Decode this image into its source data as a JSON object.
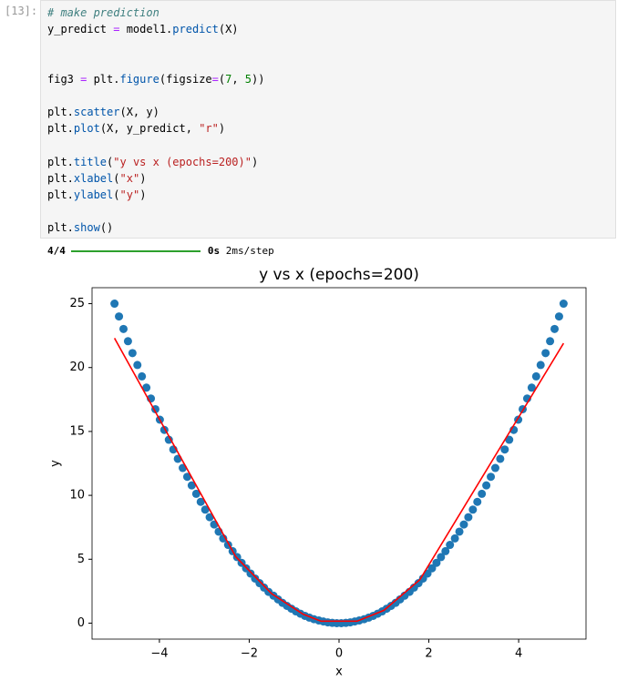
{
  "cell": {
    "prompt": "[13]:",
    "code": [
      [
        {
          "text": "# make prediction",
          "color": "#408080",
          "italic": true
        }
      ],
      [
        {
          "text": "y_predict ",
          "color": "#000000"
        },
        {
          "text": "=",
          "color": "#aa22ff"
        },
        {
          "text": " model1.",
          "color": "#000000"
        },
        {
          "text": "predict",
          "color": "#0055aa"
        },
        {
          "text": "(X)",
          "color": "#000000"
        }
      ],
      [],
      [],
      [
        {
          "text": "fig3 ",
          "color": "#000000"
        },
        {
          "text": "=",
          "color": "#aa22ff"
        },
        {
          "text": " plt.",
          "color": "#000000"
        },
        {
          "text": "figure",
          "color": "#0055aa"
        },
        {
          "text": "(figsize",
          "color": "#000000"
        },
        {
          "text": "=",
          "color": "#aa22ff"
        },
        {
          "text": "(",
          "color": "#000000"
        },
        {
          "text": "7",
          "color": "#008000"
        },
        {
          "text": ", ",
          "color": "#000000"
        },
        {
          "text": "5",
          "color": "#008000"
        },
        {
          "text": "))",
          "color": "#000000"
        }
      ],
      [],
      [
        {
          "text": "plt.",
          "color": "#000000"
        },
        {
          "text": "scatter",
          "color": "#0055aa"
        },
        {
          "text": "(X, y)",
          "color": "#000000"
        }
      ],
      [
        {
          "text": "plt.",
          "color": "#000000"
        },
        {
          "text": "plot",
          "color": "#0055aa"
        },
        {
          "text": "(X, y_predict, ",
          "color": "#000000"
        },
        {
          "text": "\"r\"",
          "color": "#ba2121"
        },
        {
          "text": ")",
          "color": "#000000"
        }
      ],
      [],
      [
        {
          "text": "plt.",
          "color": "#000000"
        },
        {
          "text": "title",
          "color": "#0055aa"
        },
        {
          "text": "(",
          "color": "#000000"
        },
        {
          "text": "\"y vs x (epochs=200)\"",
          "color": "#ba2121"
        },
        {
          "text": ")",
          "color": "#000000"
        }
      ],
      [
        {
          "text": "plt.",
          "color": "#000000"
        },
        {
          "text": "xlabel",
          "color": "#0055aa"
        },
        {
          "text": "(",
          "color": "#000000"
        },
        {
          "text": "\"x\"",
          "color": "#ba2121"
        },
        {
          "text": ")",
          "color": "#000000"
        }
      ],
      [
        {
          "text": "plt.",
          "color": "#000000"
        },
        {
          "text": "ylabel",
          "color": "#0055aa"
        },
        {
          "text": "(",
          "color": "#000000"
        },
        {
          "text": "\"y\"",
          "color": "#ba2121"
        },
        {
          "text": ")",
          "color": "#000000"
        }
      ],
      [],
      [
        {
          "text": "plt.",
          "color": "#000000"
        },
        {
          "text": "show",
          "color": "#0055aa"
        },
        {
          "text": "()",
          "color": "#000000"
        }
      ]
    ]
  },
  "output": {
    "steps": "4/4",
    "time": "0s",
    "rate": "2ms/step"
  },
  "chart_data": {
    "type": "scatter",
    "title": "y vs x (epochs=200)",
    "x_label": "x",
    "y_label": "y",
    "xlim": [
      -5.5,
      5.5
    ],
    "ylim": [
      -1.25,
      26.25
    ],
    "xticks": [
      {
        "value": -4,
        "label": "−4"
      },
      {
        "value": -2,
        "label": "−2"
      },
      0,
      2,
      4
    ],
    "yticks": [
      0,
      5,
      10,
      15,
      20,
      25
    ],
    "series": [
      {
        "type": "scatter",
        "color": "#1f77b4",
        "x": [
          -5.0,
          -4.9,
          -4.8,
          -4.7,
          -4.6,
          -4.49,
          -4.39,
          -4.29,
          -4.19,
          -4.09,
          -3.99,
          -3.89,
          -3.79,
          -3.69,
          -3.59,
          -3.48,
          -3.38,
          -3.28,
          -3.18,
          -3.08,
          -2.98,
          -2.88,
          -2.78,
          -2.68,
          -2.58,
          -2.47,
          -2.37,
          -2.27,
          -2.17,
          -2.07,
          -1.97,
          -1.87,
          -1.77,
          -1.67,
          -1.57,
          -1.46,
          -1.36,
          -1.26,
          -1.16,
          -1.06,
          -0.96,
          -0.86,
          -0.76,
          -0.66,
          -0.56,
          -0.45,
          -0.35,
          -0.25,
          -0.15,
          -0.05,
          0.05,
          0.15,
          0.25,
          0.35,
          0.45,
          0.56,
          0.66,
          0.76,
          0.86,
          0.96,
          1.06,
          1.16,
          1.26,
          1.36,
          1.46,
          1.57,
          1.67,
          1.77,
          1.87,
          1.97,
          2.07,
          2.17,
          2.27,
          2.37,
          2.47,
          2.58,
          2.68,
          2.78,
          2.88,
          2.98,
          3.08,
          3.18,
          3.28,
          3.38,
          3.48,
          3.59,
          3.69,
          3.79,
          3.89,
          3.99,
          4.09,
          4.19,
          4.29,
          4.39,
          4.49,
          4.6,
          4.7,
          4.8,
          4.9,
          5.0
        ],
        "values": [
          25.0,
          24.0,
          23.02,
          22.06,
          21.13,
          20.2,
          19.31,
          18.43,
          17.58,
          16.74,
          15.92,
          15.12,
          14.35,
          13.59,
          12.86,
          12.14,
          11.45,
          10.78,
          10.12,
          9.49,
          8.88,
          8.29,
          7.72,
          7.16,
          6.63,
          6.12,
          5.63,
          5.17,
          4.72,
          4.29,
          3.88,
          3.49,
          3.13,
          2.78,
          2.45,
          2.15,
          1.86,
          1.59,
          1.35,
          1.13,
          0.92,
          0.74,
          0.57,
          0.43,
          0.31,
          0.21,
          0.13,
          0.06,
          0.02,
          0.0,
          0.0,
          0.02,
          0.06,
          0.13,
          0.21,
          0.31,
          0.43,
          0.57,
          0.74,
          0.92,
          1.13,
          1.35,
          1.59,
          1.86,
          2.15,
          2.45,
          2.78,
          3.13,
          3.49,
          3.88,
          4.29,
          4.72,
          5.17,
          5.63,
          6.12,
          6.63,
          7.16,
          7.72,
          8.29,
          8.88,
          9.49,
          10.12,
          10.78,
          11.45,
          12.14,
          12.86,
          13.59,
          14.35,
          15.12,
          15.92,
          16.74,
          17.58,
          18.43,
          19.31,
          20.2,
          21.13,
          22.06,
          23.02,
          24.0,
          25.0
        ]
      },
      {
        "type": "line",
        "color": "#ff0000",
        "x": [
          -5.0,
          -2.3,
          -1.5,
          -0.8,
          -0.4,
          0.4,
          1.0,
          1.8,
          5.0
        ],
        "values": [
          22.3,
          5.2,
          2.3,
          0.7,
          0.15,
          0.15,
          1.0,
          3.4,
          21.9
        ]
      }
    ]
  }
}
